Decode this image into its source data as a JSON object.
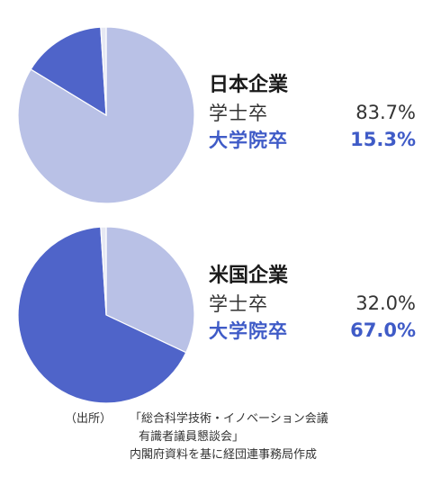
{
  "colors": {
    "bachelor": "#b9c1e6",
    "graduate": "#4f64c9",
    "other": "#e6e8f3",
    "graduate_text": "#3f5bc7"
  },
  "chart_data": [
    {
      "type": "pie",
      "title": "日本企業",
      "slices": [
        {
          "label": "学士卒",
          "value": 83.7,
          "display": "83.7%",
          "color_key": "bachelor"
        },
        {
          "label": "大学院卒",
          "value": 15.3,
          "display": "15.3%",
          "color_key": "graduate"
        },
        {
          "label": "",
          "value": 1.0,
          "display": "",
          "color_key": "other"
        }
      ]
    },
    {
      "type": "pie",
      "title": "米国企業",
      "slices": [
        {
          "label": "学士卒",
          "value": 32.0,
          "display": "32.0%",
          "color_key": "bachelor"
        },
        {
          "label": "大学院卒",
          "value": 67.0,
          "display": "67.0%",
          "color_key": "graduate"
        },
        {
          "label": "",
          "value": 1.0,
          "display": "",
          "color_key": "other"
        }
      ]
    }
  ],
  "source": {
    "label": "（出所）",
    "lines": [
      "「総合科学技術・イノベーション会議",
      "有識者議員懇談会」",
      "内閣府資料を基に経団連事務局作成"
    ]
  }
}
